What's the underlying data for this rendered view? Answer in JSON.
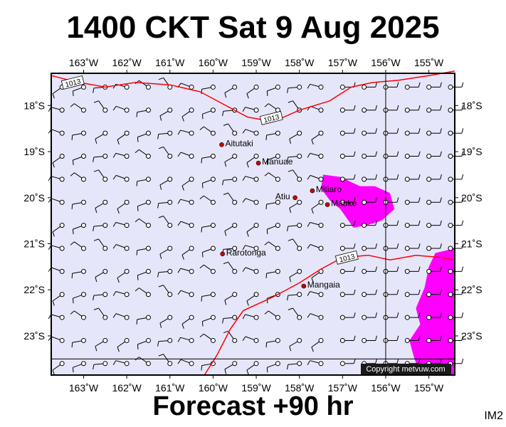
{
  "title": "1400 CKT Sat 9 Aug 2025",
  "footer_label": "Forecast +90 hr",
  "image_code": "IM2",
  "copyright": "Copyright metvuw.com",
  "colors": {
    "ocean": "#e6e6fa",
    "isobar": "#ff0000",
    "rain": "#ff00ff",
    "place_dot": "#cc0000",
    "barb": "#000000"
  },
  "map": {
    "lon_range": [
      -163.75,
      -154.4
    ],
    "lat_range": [
      -23.85,
      -17.3
    ],
    "x_ticks": [
      {
        "lon": -163,
        "label": "163˚W"
      },
      {
        "lon": -162,
        "label": "162˚W"
      },
      {
        "lon": -161,
        "label": "161˚W"
      },
      {
        "lon": -160,
        "label": "160˚W"
      },
      {
        "lon": -159,
        "label": "159˚W"
      },
      {
        "lon": -158,
        "label": "158˚W"
      },
      {
        "lon": -157,
        "label": "157˚W"
      },
      {
        "lon": -156,
        "label": "156˚W"
      },
      {
        "lon": -155,
        "label": "155˚W"
      }
    ],
    "y_ticks": [
      {
        "lat": -18,
        "label": "18˚S"
      },
      {
        "lat": -19,
        "label": "19˚S"
      },
      {
        "lat": -20,
        "label": "20˚S"
      },
      {
        "lat": -21,
        "label": "21˚S"
      },
      {
        "lat": -22,
        "label": "22˚S"
      },
      {
        "lat": -23,
        "label": "23˚S"
      }
    ],
    "reference_lines": {
      "lon": -156,
      "lat": -23.5
    },
    "places": [
      {
        "name": "Aitutaki",
        "lon": -159.8,
        "lat": -18.85,
        "label_side": "right"
      },
      {
        "name": "Manuae",
        "lon": -158.95,
        "lat": -19.25,
        "label_side": "right"
      },
      {
        "name": "Atiu",
        "lon": -158.1,
        "lat": -20.0,
        "label_side": "left"
      },
      {
        "name": "Mitiaro",
        "lon": -157.7,
        "lat": -19.85,
        "label_side": "right"
      },
      {
        "name": "Mauke",
        "lon": -157.35,
        "lat": -20.15,
        "label_side": "right"
      },
      {
        "name": "Rarotonga",
        "lon": -159.78,
        "lat": -21.22,
        "label_side": "right"
      },
      {
        "name": "Mangaia",
        "lon": -157.9,
        "lat": -21.92,
        "label_side": "right"
      }
    ],
    "isobars": [
      {
        "value": "1013",
        "label": "1013",
        "points": [
          [
            -163.75,
            -17.35
          ],
          [
            -163.2,
            -17.48
          ],
          [
            -162.5,
            -17.6
          ],
          [
            -161.8,
            -17.5
          ],
          [
            -161.0,
            -17.55
          ],
          [
            -160.3,
            -17.7
          ],
          [
            -159.8,
            -17.95
          ],
          [
            -159.2,
            -18.25
          ],
          [
            -158.6,
            -18.35
          ],
          [
            -158.0,
            -18.1
          ],
          [
            -157.3,
            -17.9
          ],
          [
            -156.8,
            -17.6
          ],
          [
            -156.3,
            -17.5
          ],
          [
            -155.7,
            -17.45
          ],
          [
            -155.0,
            -17.35
          ],
          [
            -154.4,
            -17.25
          ]
        ],
        "label_at": [
          [
            -163.25,
            -17.5
          ],
          [
            -158.65,
            -18.27
          ]
        ]
      },
      {
        "value": "1013",
        "label": "1013",
        "points": [
          [
            -160.2,
            -23.85
          ],
          [
            -159.9,
            -23.4
          ],
          [
            -159.6,
            -22.85
          ],
          [
            -159.3,
            -22.45
          ],
          [
            -158.6,
            -22.15
          ],
          [
            -158.0,
            -21.85
          ],
          [
            -157.5,
            -21.55
          ],
          [
            -157.0,
            -21.3
          ],
          [
            -156.4,
            -21.25
          ],
          [
            -155.9,
            -21.35
          ],
          [
            -155.3,
            -21.25
          ],
          [
            -154.7,
            -21.3
          ],
          [
            -154.4,
            -21.35
          ]
        ],
        "label_at": [
          [
            -156.9,
            -21.3
          ]
        ]
      }
    ],
    "rain_areas": [
      [
        [
          -157.45,
          -19.5
        ],
        [
          -157.05,
          -19.55
        ],
        [
          -156.6,
          -19.75
        ],
        [
          -156.25,
          -19.75
        ],
        [
          -155.9,
          -19.9
        ],
        [
          -155.8,
          -20.25
        ],
        [
          -156.1,
          -20.5
        ],
        [
          -156.45,
          -20.6
        ],
        [
          -156.75,
          -20.65
        ],
        [
          -156.9,
          -20.45
        ],
        [
          -157.05,
          -20.25
        ],
        [
          -157.3,
          -20.05
        ],
        [
          -157.5,
          -19.8
        ]
      ],
      [
        [
          -154.4,
          -21.1
        ],
        [
          -154.85,
          -21.2
        ],
        [
          -155.0,
          -21.5
        ],
        [
          -155.1,
          -21.95
        ],
        [
          -155.3,
          -22.4
        ],
        [
          -155.2,
          -22.75
        ],
        [
          -155.45,
          -23.1
        ],
        [
          -155.35,
          -23.45
        ],
        [
          -155.2,
          -23.85
        ],
        [
          -154.4,
          -23.85
        ]
      ]
    ],
    "barb_grid": {
      "lons": [
        -163.5,
        -163.0,
        -162.5,
        -162.0,
        -161.5,
        -161.0,
        -160.5,
        -160.0,
        -159.5,
        -159.0,
        -158.5,
        -158.0,
        -157.5,
        -157.0,
        -156.5,
        -156.0,
        -155.5,
        -155.0,
        -154.5
      ],
      "lats": [
        -17.6,
        -18.1,
        -18.6,
        -19.1,
        -19.6,
        -20.1,
        -20.6,
        -21.1,
        -21.6,
        -22.1,
        -22.6,
        -23.1,
        -23.6
      ]
    }
  }
}
